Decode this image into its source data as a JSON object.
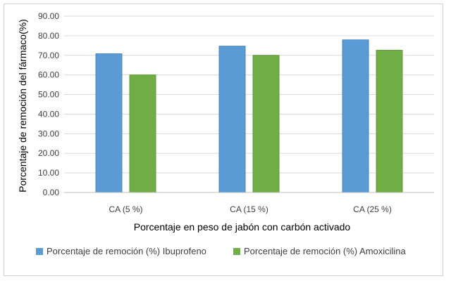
{
  "chart_data": {
    "type": "bar",
    "categories": [
      "CA (5 %)",
      "CA (15 %)",
      "CA (25 %)"
    ],
    "series": [
      {
        "name": "Porcentaje de remoción (%) Ibuprofeno",
        "values": [
          70.8,
          74.7,
          77.9
        ],
        "color": "#5b9bd5"
      },
      {
        "name": "Porcentaje de remoción (%) Amoxicilina",
        "values": [
          60.0,
          70.0,
          72.6
        ],
        "color": "#70ad47"
      }
    ],
    "xlabel": "Porcentaje en peso de jabón con carbón activado",
    "ylabel": "Porcentaje de remoción del fármaco(%)",
    "ylim": [
      0,
      90
    ],
    "yticks": [
      "0.00",
      "10.00",
      "20.00",
      "30.00",
      "40.00",
      "50.00",
      "60.00",
      "70.00",
      "80.00",
      "90.00"
    ],
    "grid": true,
    "legend_position": "bottom"
  }
}
